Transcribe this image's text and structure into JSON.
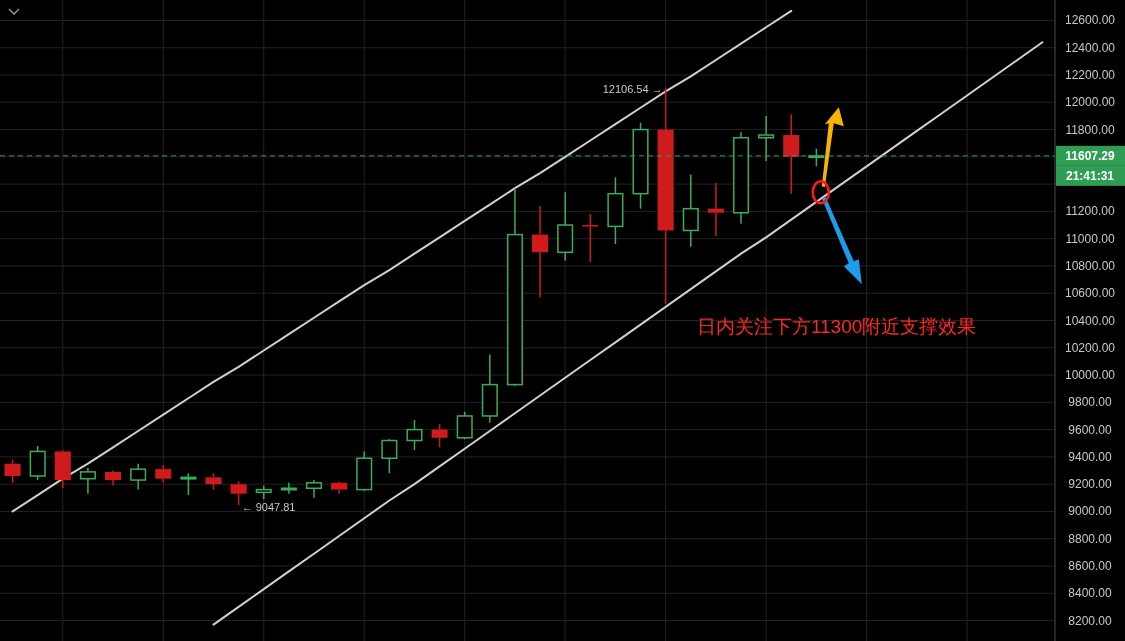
{
  "chart_data": {
    "type": "candlestick",
    "categories": [
      null,
      null,
      null,
      null,
      null,
      null,
      null,
      null,
      null,
      null,
      null,
      null,
      null,
      null,
      null,
      null,
      null,
      null,
      null,
      null,
      null,
      null,
      null,
      null,
      null,
      null,
      null,
      null,
      null,
      null,
      null,
      null,
      null,
      null,
      null,
      null,
      null,
      null,
      null,
      null,
      null,
      null
    ],
    "ohlc": [
      [
        9350,
        9380,
        9210,
        9260
      ],
      [
        9260,
        9480,
        9230,
        9440
      ],
      [
        9440,
        9450,
        9170,
        9230
      ],
      [
        9240,
        9320,
        9130,
        9290
      ],
      [
        9290,
        9300,
        9190,
        9230
      ],
      [
        9230,
        9350,
        9160,
        9310
      ],
      [
        9310,
        9340,
        9210,
        9240
      ],
      [
        9240,
        9280,
        9120,
        9250
      ],
      [
        9250,
        9280,
        9160,
        9200
      ],
      [
        9200,
        9220,
        9047.81,
        9130
      ],
      [
        9140,
        9190,
        9090,
        9160
      ],
      [
        9160,
        9210,
        9130,
        9170
      ],
      [
        9170,
        9230,
        9100,
        9210
      ],
      [
        9210,
        9220,
        9130,
        9160
      ],
      [
        9160,
        9440,
        9150,
        9390
      ],
      [
        9390,
        9530,
        9280,
        9520
      ],
      [
        9520,
        9670,
        9450,
        9600
      ],
      [
        9600,
        9640,
        9470,
        9540
      ],
      [
        9540,
        9730,
        9530,
        9700
      ],
      [
        9700,
        10150,
        9650,
        9930
      ],
      [
        9930,
        11370,
        9920,
        11030
      ],
      [
        11030,
        11240,
        10570,
        10900
      ],
      [
        10900,
        11340,
        10840,
        11100
      ],
      [
        11100,
        11180,
        10830,
        11090
      ],
      [
        11090,
        11450,
        10960,
        11330
      ],
      [
        11330,
        11850,
        11220,
        11800
      ],
      [
        11800,
        12106.54,
        10520,
        11060
      ],
      [
        11060,
        11470,
        10940,
        11220
      ],
      [
        11220,
        11410,
        11020,
        11190
      ],
      [
        11190,
        11780,
        11110,
        11740
      ],
      [
        11740,
        11900,
        11570,
        11760
      ],
      [
        11760,
        11910,
        11330,
        11600
      ],
      [
        11600,
        11660,
        11530,
        11607.29
      ],
      null,
      null,
      null,
      null,
      null,
      null,
      null,
      null,
      null
    ],
    "colors": [
      "#cf1b1b",
      "#3aad5c",
      "#cf1b1b",
      "#3aad5c",
      "#cf1b1b",
      "#3aad5c",
      "#cf1b1b",
      "#3aad5c",
      "#cf1b1b",
      "#cf1b1b",
      "#3aad5c",
      "#3aad5c",
      "#3aad5c",
      "#cf1b1b",
      "#3aad5c",
      "#3aad5c",
      "#3aad5c",
      "#cf1b1b",
      "#3aad5c",
      "#3aad5c",
      "#3aad5c",
      "#cf1b1b",
      "#3aad5c",
      "#cf1b1b",
      "#3aad5c",
      "#3aad5c",
      "#cf1b1b",
      "#3aad5c",
      "#cf1b1b",
      "#3aad5c",
      "#3aad5c",
      "#cf1b1b",
      "#3aad5c",
      null,
      null,
      null,
      null,
      null,
      null,
      null,
      null,
      null
    ],
    "series": [
      {
        "type": "line",
        "color": "#d0d0d0",
        "values": [
          9000,
          9120,
          9240,
          9350,
          9470,
          9590,
          9710,
          9830,
          9950,
          10060,
          10180,
          10300,
          10420,
          10540,
          10660,
          10770,
          10890,
          11010,
          11130,
          11250,
          11370,
          11480,
          11600,
          11720,
          11840,
          11960,
          12080,
          12190,
          12310,
          12430,
          12550,
          12670,
          null,
          null,
          null,
          null,
          null,
          null,
          null,
          null,
          null,
          null
        ]
      },
      {
        "type": "line",
        "color": "#d0d0d0",
        "values": [
          null,
          null,
          null,
          null,
          null,
          null,
          null,
          null,
          8170,
          8300,
          8430,
          8560,
          8690,
          8820,
          8950,
          9080,
          9200,
          9330,
          9460,
          9590,
          9720,
          9850,
          9980,
          10110,
          10240,
          10370,
          10500,
          10630,
          10760,
          10890,
          11010,
          11140,
          11270,
          11400,
          11530,
          11660,
          11790,
          11920,
          12050,
          12180,
          12310,
          12440
        ]
      }
    ],
    "ylim": [
      8050,
      12750
    ],
    "yticks": [
      {
        "value": 8200,
        "label": "8200.00"
      },
      {
        "value": 8400,
        "label": "8400.00"
      },
      {
        "value": 8600,
        "label": "8600.00"
      },
      {
        "value": 8800,
        "label": "8800.00"
      },
      {
        "value": 9000,
        "label": "9000.00"
      },
      {
        "value": 9200,
        "label": "9200.00"
      },
      {
        "value": 9400,
        "label": "9400.00"
      },
      {
        "value": 9600,
        "label": "9600.00"
      },
      {
        "value": 9800,
        "label": "9800.00"
      },
      {
        "value": 10000,
        "label": "10000.00"
      },
      {
        "value": 10200,
        "label": "10200.00"
      },
      {
        "value": 10400,
        "label": "10400.00"
      },
      {
        "value": 10600,
        "label": "10600.00"
      },
      {
        "value": 10800,
        "label": "10800.00"
      },
      {
        "value": 11000,
        "label": "11000.00"
      },
      {
        "value": 11200,
        "label": "11200.00"
      },
      {
        "value": 11400,
        "label": null
      },
      {
        "value": 11600,
        "label": null
      },
      {
        "value": 11800,
        "label": "11800.00"
      },
      {
        "value": 12000,
        "label": "12000.00"
      },
      {
        "value": 12200,
        "label": "12200.00"
      },
      {
        "value": 12400,
        "label": "12400.00"
      },
      {
        "value": 12600,
        "label": "12600.00"
      }
    ],
    "grid": true,
    "tick_labels": "y",
    "ref_lines": [
      {
        "axis": "y",
        "value": 11607.29,
        "label": "11607.29",
        "color": "#2f9e52",
        "line_style": "dashed"
      }
    ],
    "annotations": [
      "21:41:31",
      "日内关注下方11300附近支撑效果",
      "12106.54 →",
      "← 9047.81"
    ]
  }
}
